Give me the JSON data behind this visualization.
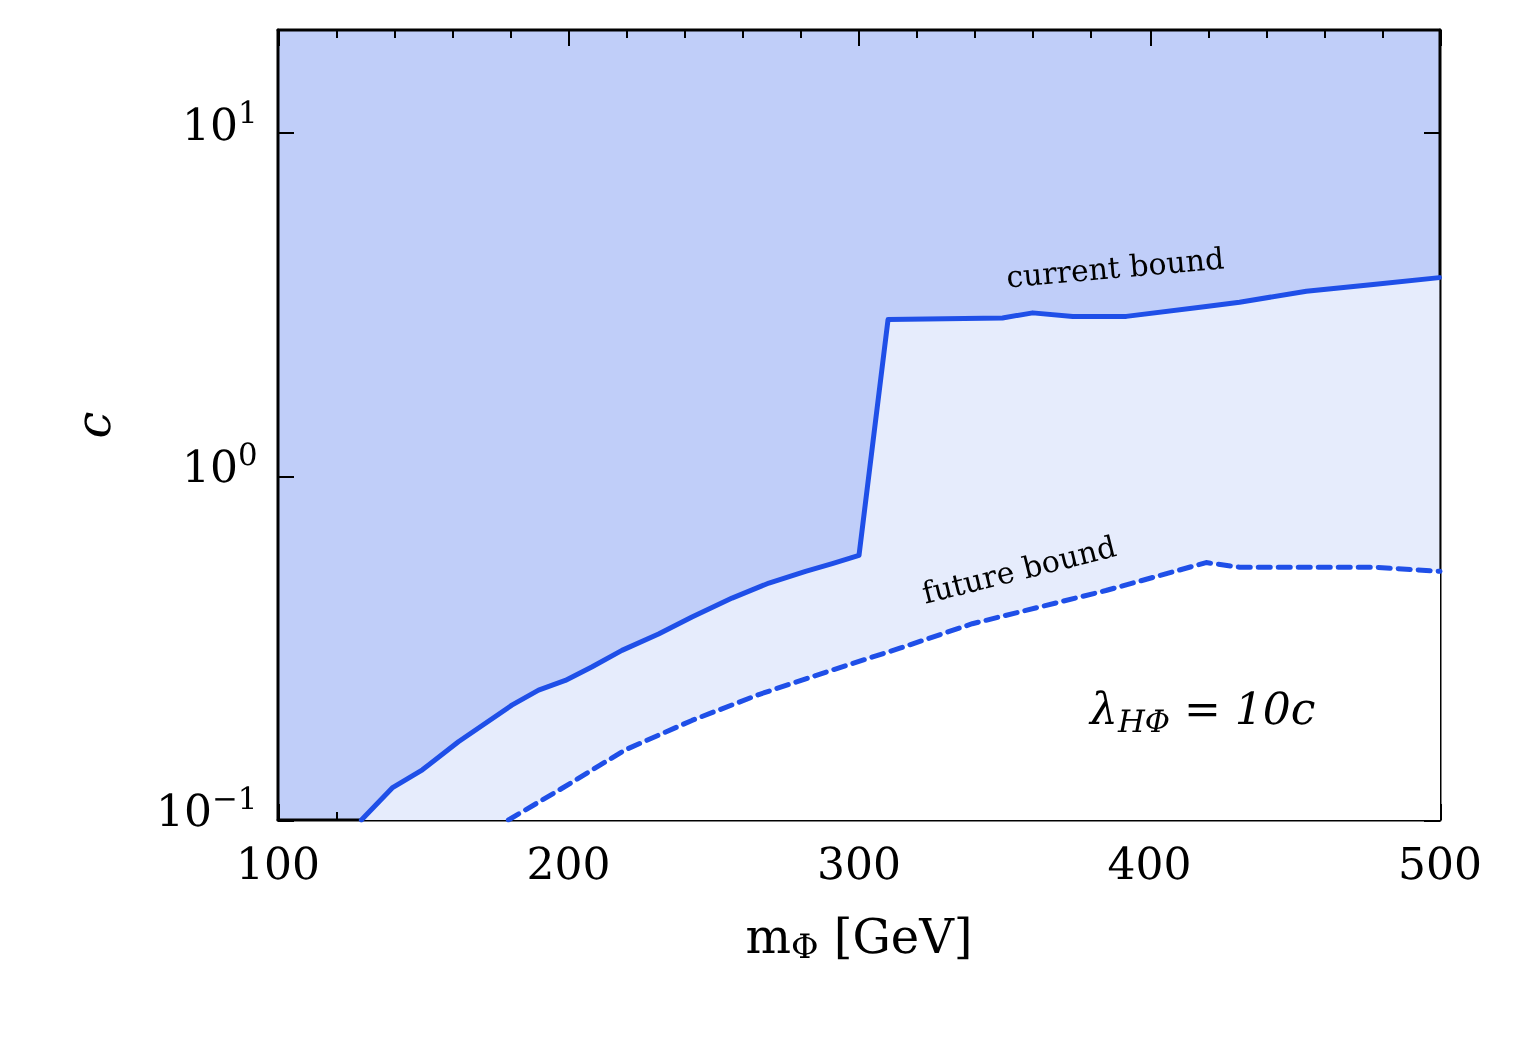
{
  "chart_data": {
    "type": "area",
    "xlabel": "m$_{Φ}$ [GeV]",
    "ylabel": "c",
    "xlim": [
      100,
      500
    ],
    "xticks": [
      100,
      200,
      300,
      400,
      500
    ],
    "ylim": [
      0.1,
      20
    ],
    "yticks": [
      {
        "value": 0.1,
        "label": "10$^{−1}$"
      },
      {
        "value": 1,
        "label": "10$^{0}$"
      },
      {
        "value": 10,
        "label": "10$^{1}$"
      }
    ],
    "log": "y",
    "grid": false,
    "marker": "none",
    "series": [
      {
        "color": "#1f4fe8",
        "line_style": "solid",
        "x": [
          128.7,
          139.3,
          149.7,
          162.1,
          180.5,
          189.7,
          198.9,
          208,
          218.4,
          231,
          242.5,
          256.3,
          269,
          281.6,
          290.8,
          300,
          310,
          349.4,
          359.8,
          373.6,
          392,
          419.5,
          431,
          454,
          477,
          499.8
        ],
        "values": [
          0.1,
          0.124,
          0.14,
          0.169,
          0.216,
          0.239,
          0.255,
          0.279,
          0.312,
          0.348,
          0.39,
          0.443,
          0.49,
          0.53,
          0.558,
          0.59,
          2.87,
          2.9,
          3.0,
          2.93,
          2.93,
          3.13,
          3.22,
          3.47,
          3.63,
          3.8
        ]
      },
      {
        "color": "#1f4fe8",
        "line_style": "dashed",
        "x": [
          179.3,
          196.6,
          219.5,
          242.5,
          265.5,
          290,
          313.8,
          339,
          385,
          419.5,
          431,
          477,
          500
        ],
        "values": [
          0.1,
          0.122,
          0.16,
          0.195,
          0.232,
          0.272,
          0.316,
          0.373,
          0.466,
          0.562,
          0.545,
          0.545,
          0.53
        ]
      }
    ],
    "annotations": [
      "current bound",
      "future bound",
      "λ$_{HΦ}$ = 10c"
    ]
  }
}
